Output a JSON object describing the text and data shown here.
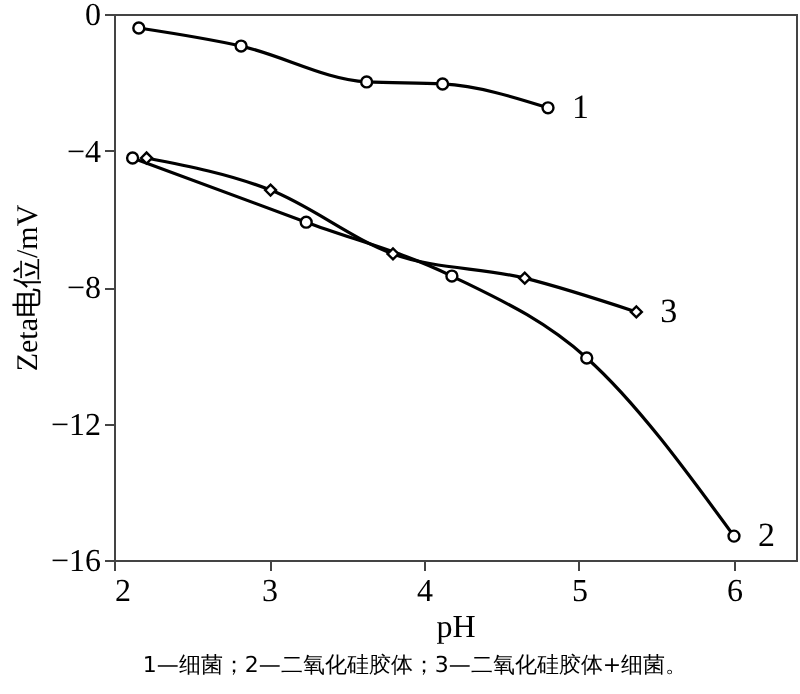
{
  "chart_data": {
    "type": "line",
    "xlabel": "pH",
    "ylabel": "Zeta电位/mV",
    "xlim": [
      2,
      6.4
    ],
    "xticks": [
      2,
      3,
      4,
      5,
      6
    ],
    "ylim": [
      -16,
      0
    ],
    "yticks": [
      -16,
      -12,
      -8,
      -4,
      0
    ],
    "grid": false,
    "series": [
      {
        "name": "1",
        "color": "#000000",
        "marker": "circle",
        "x": [
          2.16,
          2.82,
          3.63,
          4.12,
          4.8
        ],
        "values": [
          -0.41,
          -0.94,
          -1.99,
          -2.05,
          -2.75
        ]
      },
      {
        "name": "2",
        "color": "#000000",
        "marker": "circle",
        "x": [
          2.12,
          3.24,
          4.18,
          5.05,
          6.0
        ],
        "values": [
          -4.22,
          -6.1,
          -7.68,
          -10.08,
          -15.3
        ]
      },
      {
        "name": "3",
        "color": "#000000",
        "marker": "diamond",
        "x": [
          2.21,
          3.01,
          3.8,
          4.65,
          5.37
        ],
        "values": [
          -4.22,
          -5.16,
          -7.03,
          -7.74,
          -8.73
        ]
      }
    ],
    "annotations": [
      "1—细菌；2—二氧化硅胶体；3—二氧化硅胶体+细菌。"
    ]
  }
}
